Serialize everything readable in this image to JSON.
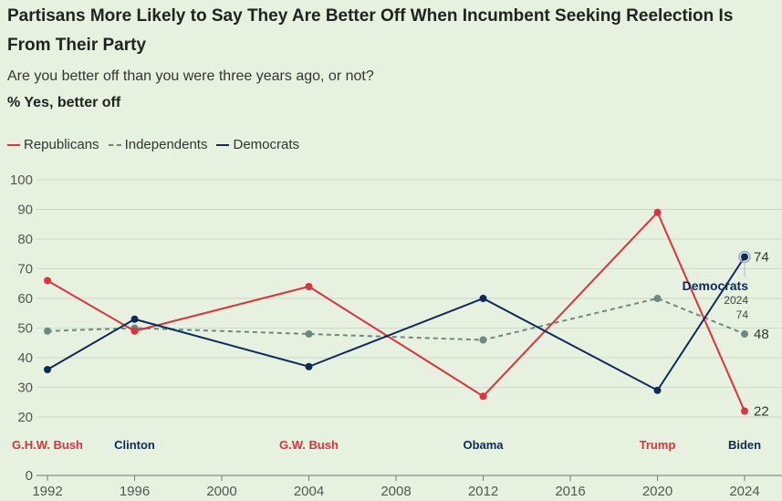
{
  "title": "Partisans More Likely to Say They Are Better Off When Incumbent Seeking Reelection Is From Their Party",
  "subtitle": "Are you better off than you were three years ago, or not?",
  "unit_label": "% Yes, better off",
  "colors": {
    "republicans": "#e0313d",
    "independents": "#6b8a84",
    "democrats": "#0c2a5e"
  },
  "chart_data": {
    "type": "line",
    "x": [
      1992,
      1996,
      2004,
      2012,
      2020,
      2024
    ],
    "xticks": [
      "1992",
      "1996",
      "2000",
      "2004",
      "2008",
      "2012",
      "2016",
      "2020",
      "2024"
    ],
    "yticks": [
      "0",
      "20",
      "30",
      "40",
      "50",
      "60",
      "70",
      "80",
      "90",
      "100"
    ],
    "ylim": [
      0,
      100
    ],
    "grid": true,
    "legend_position": "top-left",
    "series": [
      {
        "name": "Republicans",
        "values": [
          66,
          49,
          64,
          27,
          89,
          22
        ]
      },
      {
        "name": "Independents",
        "values": [
          49,
          50,
          48,
          46,
          60,
          48
        ]
      },
      {
        "name": "Democrats",
        "values": [
          36,
          53,
          37,
          60,
          29,
          74
        ]
      }
    ],
    "incumbent_labels": [
      {
        "x": 1992,
        "text": "G.H.W. Bush",
        "party": "republicans"
      },
      {
        "x": 1996,
        "text": "Clinton",
        "party": "democrats"
      },
      {
        "x": 2004,
        "text": "G.W. Bush",
        "party": "republicans"
      },
      {
        "x": 2012,
        "text": "Obama",
        "party": "democrats"
      },
      {
        "x": 2020,
        "text": "Trump",
        "party": "republicans"
      },
      {
        "x": 2024,
        "text": "Biden",
        "party": "democrats"
      }
    ],
    "end_labels": [
      "74",
      "48",
      "22"
    ],
    "tooltip": {
      "series": "Democrats",
      "year": "2024",
      "value": "74"
    }
  }
}
